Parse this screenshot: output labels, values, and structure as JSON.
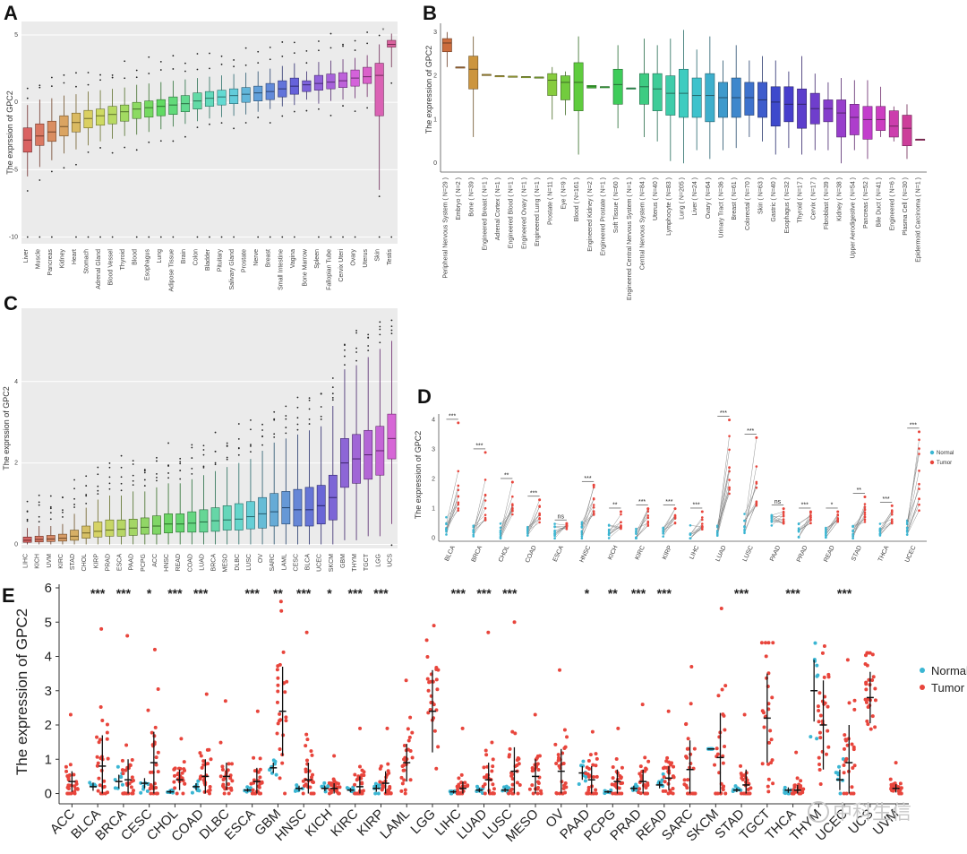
{
  "panels": {
    "A": {
      "label": "A",
      "ylabel": "The exprssion of GPC2"
    },
    "B": {
      "label": "B",
      "ylabel": "The expression of GPC2"
    },
    "C": {
      "label": "C",
      "ylabel": "The exprssion of GPC2"
    },
    "D": {
      "label": "D",
      "ylabel": "The expression of GPC2"
    },
    "E": {
      "label": "E",
      "ylabel": "The expression of GPC2"
    }
  },
  "watermark": "中科生信",
  "colors": {
    "normal": "#3bb6d3",
    "tumor": "#e8453c",
    "panel_bg": "#ebebeb",
    "grid": "#ffffff"
  },
  "chart_data": [
    {
      "panel": "A",
      "type": "box",
      "ylabel": "The exprssion of GPC2",
      "ylim": [
        -10.5,
        6
      ],
      "yticks": [
        5,
        0,
        -5,
        -10
      ],
      "grid": true,
      "categories": [
        "Liver",
        "Muscle",
        "Pancreas",
        "Kidney",
        "Heart",
        "Stomach",
        "Adrenal Gland",
        "Blood Vessel",
        "Thyroid",
        "Blood",
        "Esophagus",
        "Lung",
        "Adipose Tissue",
        "Brain",
        "Colon",
        "Bladder",
        "Pituitary",
        "Salivary Gland",
        "Prostate",
        "Nerve",
        "Breast",
        "Small Intestine",
        "Vagina",
        "Bone Marrow",
        "Spleen",
        "Fallopian Tube",
        "Cervix Uteri",
        "Ovary",
        "Uterus",
        "Skin",
        "Testis"
      ],
      "boxes": [
        [
          -5.5,
          -3.7,
          -2.8,
          -1.9,
          -0.2
        ],
        [
          -4.8,
          -3.2,
          -2.5,
          -1.6,
          0.2
        ],
        [
          -4.3,
          -2.9,
          -2.2,
          -1.4,
          0.3
        ],
        [
          -3.8,
          -2.5,
          -1.8,
          -1.0,
          0.5
        ],
        [
          -3.5,
          -2.2,
          -1.5,
          -0.8,
          0.6
        ],
        [
          -3.2,
          -1.9,
          -1.2,
          -0.6,
          0.8
        ],
        [
          -2.9,
          -1.7,
          -1.0,
          -0.5,
          0.9
        ],
        [
          -2.7,
          -1.6,
          -0.9,
          -0.3,
          1.0
        ],
        [
          -2.5,
          -1.4,
          -0.7,
          -0.2,
          1.1
        ],
        [
          -2.4,
          -1.2,
          -0.5,
          0.0,
          1.3
        ],
        [
          -2.2,
          -1.1,
          -0.4,
          0.1,
          1.4
        ],
        [
          -2.0,
          -1.0,
          -0.3,
          0.2,
          1.5
        ],
        [
          -1.8,
          -0.9,
          -0.2,
          0.4,
          1.6
        ],
        [
          -1.6,
          -0.7,
          -0.1,
          0.5,
          1.7
        ],
        [
          -1.4,
          -0.5,
          0.1,
          0.7,
          1.8
        ],
        [
          -1.2,
          -0.3,
          0.3,
          0.8,
          1.9
        ],
        [
          -1.1,
          -0.2,
          0.4,
          0.9,
          2.0
        ],
        [
          -1.0,
          -0.1,
          0.5,
          1.0,
          2.1
        ],
        [
          -0.9,
          0.0,
          0.6,
          1.1,
          2.2
        ],
        [
          -0.7,
          0.1,
          0.7,
          1.2,
          2.3
        ],
        [
          -0.5,
          0.2,
          0.8,
          1.4,
          2.5
        ],
        [
          -0.3,
          0.4,
          1.0,
          1.6,
          2.7
        ],
        [
          -0.2,
          0.6,
          1.2,
          1.8,
          2.9
        ],
        [
          0.2,
          0.8,
          1.3,
          1.6,
          2.3
        ],
        [
          -0.1,
          0.9,
          1.4,
          2.0,
          3.0
        ],
        [
          0.1,
          1.0,
          1.5,
          2.1,
          3.1
        ],
        [
          0.2,
          1.1,
          1.6,
          2.2,
          3.2
        ],
        [
          0.3,
          1.2,
          1.8,
          2.4,
          3.3
        ],
        [
          0.4,
          1.4,
          1.9,
          2.6,
          3.5
        ],
        [
          -6.5,
          -1.0,
          2.0,
          2.9,
          4.3
        ],
        [
          2.6,
          4.1,
          4.3,
          4.6,
          5.1
        ]
      ],
      "outlier_bottom": -10,
      "annotations": [
        "*"
      ]
    },
    {
      "panel": "B",
      "type": "box",
      "ylabel": "The expression of GPC2",
      "ylim": [
        -0.2,
        3.2
      ],
      "yticks": [
        0,
        1,
        2,
        3
      ],
      "grid": false,
      "categories": [
        "Peripheral Nervous System ( N=29 )",
        "Embryo ( N=2 )",
        "Bone ( N=39 )",
        "Engineered Breast ( N=1 )",
        "Adrenal Cortex ( N=1 )",
        "Engineered Blood ( N=1 )",
        "Engineered Ovary ( N=1 )",
        "Engineered Lung ( N=1 )",
        "Prostate ( N=11 )",
        "Eye ( N=9 )",
        "Blood ( N=161 )",
        "Engineered Kidney ( N=2 )",
        "Engineered Prostate ( N=1 )",
        "Soft Tissue ( N=60 )",
        "Engineered Central Nervous System ( N=1 )",
        "Central Nervous System ( N=84 )",
        "Uterus ( N=40 )",
        "Lymphocyte ( N=83 )",
        "Lung ( N=205 )",
        "Liver ( N=24 )",
        "Ovary ( N=64 )",
        "Urinary Tract ( N=36 )",
        "Breast ( N=61 )",
        "Colorectal ( N=70 )",
        "Skin ( N=63 )",
        "Gastric ( N=40 )",
        "Esophagus ( N=32 )",
        "Thyroid ( N=17 )",
        "Cervix ( N=17 )",
        "Fibroblast ( N=39 )",
        "Kidney ( N=38 )",
        "Upper Aerodigestive ( N=54 )",
        "Pancreas ( N=52 )",
        "Bile Duct ( N=41 )",
        "Engineered ( N=6 )",
        "Plasma Cell ( N=30 )",
        "Epidermoid Carcinoma ( N=1 )"
      ],
      "boxes": [
        [
          2.2,
          2.55,
          2.75,
          2.85,
          3.0
        ],
        [
          2.2,
          2.2,
          2.2,
          2.2,
          2.2
        ],
        [
          0.6,
          1.7,
          2.15,
          2.45,
          2.9
        ],
        [
          2.03,
          2.03,
          2.03,
          2.03,
          2.03
        ],
        [
          2.0,
          2.0,
          2.0,
          2.0,
          2.0
        ],
        [
          1.99,
          1.99,
          1.99,
          1.99,
          1.99
        ],
        [
          1.98,
          1.98,
          1.98,
          1.98,
          1.98
        ],
        [
          1.97,
          1.97,
          1.97,
          1.97,
          1.97
        ],
        [
          1.0,
          1.55,
          1.9,
          2.05,
          2.2
        ],
        [
          1.1,
          1.45,
          1.85,
          2.0,
          2.1
        ],
        [
          0.2,
          1.2,
          1.85,
          2.3,
          2.9
        ],
        [
          1.72,
          1.72,
          1.75,
          1.78,
          1.78
        ],
        [
          1.75,
          1.75,
          1.75,
          1.75,
          1.75
        ],
        [
          0.8,
          1.35,
          1.8,
          2.15,
          2.7
        ],
        [
          1.72,
          1.72,
          1.72,
          1.72,
          1.72
        ],
        [
          0.6,
          1.35,
          1.75,
          2.05,
          2.85
        ],
        [
          0.5,
          1.2,
          1.7,
          2.05,
          2.7
        ],
        [
          0.05,
          1.1,
          1.6,
          2.0,
          2.85
        ],
        [
          0.0,
          1.05,
          1.6,
          2.15,
          3.05
        ],
        [
          0.3,
          1.05,
          1.55,
          1.95,
          2.6
        ],
        [
          0.1,
          0.95,
          1.55,
          2.05,
          2.9
        ],
        [
          0.3,
          1.05,
          1.5,
          1.85,
          2.35
        ],
        [
          0.35,
          1.05,
          1.5,
          1.95,
          2.7
        ],
        [
          0.6,
          1.1,
          1.5,
          1.85,
          2.35
        ],
        [
          0.5,
          1.05,
          1.45,
          1.85,
          2.45
        ],
        [
          0.2,
          0.85,
          1.4,
          1.75,
          2.35
        ],
        [
          0.35,
          0.95,
          1.35,
          1.75,
          2.1
        ],
        [
          0.2,
          0.8,
          1.35,
          1.7,
          2.45
        ],
        [
          0.3,
          0.9,
          1.25,
          1.6,
          2.05
        ],
        [
          0.3,
          0.95,
          1.25,
          1.45,
          1.85
        ],
        [
          0.0,
          0.6,
          1.15,
          1.45,
          1.95
        ],
        [
          0.3,
          0.65,
          1.05,
          1.35,
          1.9
        ],
        [
          0.1,
          0.55,
          1.0,
          1.3,
          1.9
        ],
        [
          0.6,
          0.75,
          1.0,
          1.3,
          1.75
        ],
        [
          0.5,
          0.6,
          0.85,
          1.2,
          1.3
        ],
        [
          0.1,
          0.4,
          0.8,
          1.1,
          1.35
        ],
        [
          0.55,
          0.55,
          0.55,
          0.55,
          0.55
        ]
      ]
    },
    {
      "panel": "C",
      "type": "box",
      "ylabel": "The exprssion of GPC2",
      "ylim": [
        -0.1,
        5.8
      ],
      "yticks": [
        0,
        2,
        4
      ],
      "grid": true,
      "categories": [
        "LIHC",
        "KICH",
        "UVM",
        "KIRC",
        "STAD",
        "CHOL",
        "KIRP",
        "PRAD",
        "ESCA",
        "PAAD",
        "PCPG",
        "ACC",
        "HNSC",
        "READ",
        "COAD",
        "LUAD",
        "BRCA",
        "MESO",
        "DLBC",
        "LUSC",
        "OV",
        "SARC",
        "LAML",
        "CESC",
        "BLCA",
        "UCEC",
        "SKCM",
        "GBM",
        "THYM",
        "TGCT",
        "LGG",
        "UCS"
      ],
      "boxes": [
        [
          0.0,
          0.05,
          0.1,
          0.18,
          0.4
        ],
        [
          0.0,
          0.06,
          0.12,
          0.2,
          0.45
        ],
        [
          0.0,
          0.07,
          0.13,
          0.22,
          0.45
        ],
        [
          0.0,
          0.08,
          0.15,
          0.25,
          0.5
        ],
        [
          0.0,
          0.1,
          0.2,
          0.35,
          0.75
        ],
        [
          0.0,
          0.15,
          0.28,
          0.45,
          0.9
        ],
        [
          0.0,
          0.18,
          0.32,
          0.55,
          1.1
        ],
        [
          0.0,
          0.2,
          0.35,
          0.6,
          1.2
        ],
        [
          0.0,
          0.2,
          0.37,
          0.6,
          1.2
        ],
        [
          0.0,
          0.22,
          0.4,
          0.62,
          1.3
        ],
        [
          0.0,
          0.25,
          0.42,
          0.65,
          1.3
        ],
        [
          0.0,
          0.25,
          0.45,
          0.7,
          1.4
        ],
        [
          0.0,
          0.28,
          0.5,
          0.75,
          1.5
        ],
        [
          0.0,
          0.3,
          0.5,
          0.75,
          1.5
        ],
        [
          0.0,
          0.3,
          0.52,
          0.8,
          1.6
        ],
        [
          0.0,
          0.3,
          0.55,
          0.85,
          1.7
        ],
        [
          0.0,
          0.32,
          0.58,
          0.9,
          1.8
        ],
        [
          0.0,
          0.35,
          0.6,
          0.95,
          1.9
        ],
        [
          0.0,
          0.35,
          0.62,
          1.0,
          2.0
        ],
        [
          0.0,
          0.38,
          0.68,
          1.05,
          2.1
        ],
        [
          0.0,
          0.4,
          0.75,
          1.15,
          2.3
        ],
        [
          0.0,
          0.45,
          0.8,
          1.25,
          2.5
        ],
        [
          0.0,
          0.5,
          0.9,
          1.3,
          2.6
        ],
        [
          0.0,
          0.45,
          0.85,
          1.35,
          2.7
        ],
        [
          0.0,
          0.45,
          0.85,
          1.4,
          2.8
        ],
        [
          0.0,
          0.5,
          0.95,
          1.45,
          2.9
        ],
        [
          0.0,
          0.6,
          1.15,
          1.7,
          3.4
        ],
        [
          0.1,
          1.4,
          2.0,
          2.6,
          4.3
        ],
        [
          0.1,
          1.5,
          2.1,
          2.7,
          4.4
        ],
        [
          0.2,
          1.6,
          2.2,
          2.8,
          4.6
        ],
        [
          0.2,
          1.7,
          2.3,
          2.9,
          4.8
        ],
        [
          0.5,
          2.1,
          2.6,
          3.2,
          5.0
        ]
      ]
    },
    {
      "panel": "D",
      "type": "paired-scatter",
      "ylabel": "The expression of GPC2",
      "ylim": [
        -0.1,
        4.2
      ],
      "yticks": [
        0,
        1,
        2,
        3,
        4
      ],
      "legend": [
        "Normal",
        "Tumor"
      ],
      "legend_position": "right",
      "categories": [
        "BLCA",
        "BRCA",
        "CHOL",
        "COAD",
        "ESCA",
        "HNSC",
        "KICH",
        "KIRC",
        "KIRP",
        "LIHC",
        "LUAD",
        "LUSC",
        "PAAD",
        "PRAD",
        "READ",
        "STAD",
        "THCA",
        "UCEC"
      ],
      "significance": [
        "***",
        "***",
        "**",
        "***",
        "ns",
        "***",
        "**",
        "***",
        "***",
        "***",
        "***",
        "***",
        "ns",
        "***",
        "*",
        "**",
        "***",
        "***"
      ],
      "normal_median": [
        0.3,
        0.25,
        0.2,
        0.25,
        0.25,
        0.3,
        0.15,
        0.12,
        0.2,
        0.1,
        0.3,
        0.3,
        0.6,
        0.25,
        0.25,
        0.2,
        0.2,
        0.35
      ],
      "tumor_median": [
        0.8,
        0.6,
        0.7,
        0.5,
        0.3,
        0.7,
        0.3,
        0.4,
        0.5,
        0.3,
        0.8,
        0.9,
        0.5,
        0.5,
        0.5,
        0.5,
        0.5,
        0.9
      ],
      "tumor_max": [
        3.9,
        2.9,
        1.9,
        1.3,
        0.5,
        1.8,
        0.9,
        1.0,
        1.0,
        0.9,
        4.0,
        3.4,
        1.0,
        0.9,
        0.9,
        1.4,
        1.1,
        3.6
      ]
    },
    {
      "panel": "E",
      "type": "scatter-strip",
      "ylabel": "The expression of GPC2",
      "ylim": [
        -0.3,
        6
      ],
      "yticks": [
        0,
        1,
        2,
        3,
        4,
        5,
        6
      ],
      "legend": [
        "Normal",
        "Tumor"
      ],
      "legend_position": "right",
      "categories": [
        "ACC",
        "BLCA",
        "BRCA",
        "CESC",
        "CHOL",
        "COAD",
        "DLBC",
        "ESCA",
        "GBM",
        "HNSC",
        "KICH",
        "KIRC",
        "KIRP",
        "LAML",
        "LGG",
        "LIHC",
        "LUAD",
        "LUSC",
        "MESO",
        "OV",
        "PAAD",
        "PCPG",
        "PRAD",
        "READ",
        "SARC",
        "SKCM",
        "STAD",
        "TGCT",
        "THCA",
        "THYM",
        "UCEC",
        "UCS",
        "UVM"
      ],
      "significance": [
        "",
        "***",
        "***",
        "*",
        "***",
        "***",
        "",
        "***",
        "**",
        "***",
        "*",
        "***",
        "***",
        "",
        "",
        "***",
        "***",
        "***",
        "",
        "",
        "*",
        "**",
        "***",
        "***",
        "",
        "",
        "***",
        "",
        "***",
        "",
        "***",
        "",
        ""
      ],
      "normal_mean": [
        null,
        0.2,
        0.35,
        0.3,
        0.05,
        0.2,
        null,
        0.1,
        0.75,
        0.15,
        0.15,
        0.1,
        0.15,
        null,
        null,
        0.05,
        0.1,
        0.1,
        null,
        null,
        0.6,
        0.05,
        0.15,
        0.25,
        null,
        1.3,
        0.1,
        null,
        0.1,
        3.0,
        0.4,
        null,
        null
      ],
      "normal_sd": [
        null,
        0.12,
        0.2,
        0.15,
        0.05,
        0.1,
        null,
        0.05,
        0.15,
        0.08,
        0.08,
        0.06,
        0.1,
        null,
        null,
        0.05,
        0.06,
        0.06,
        null,
        null,
        0.2,
        0.04,
        0.08,
        0.1,
        null,
        0.0,
        0.06,
        null,
        0.08,
        0.9,
        0.3,
        null,
        null
      ],
      "tumor_mean": [
        0.35,
        0.8,
        0.4,
        0.9,
        0.4,
        0.5,
        0.5,
        0.35,
        2.4,
        0.4,
        0.15,
        0.2,
        0.3,
        0.9,
        2.4,
        0.15,
        0.4,
        0.65,
        0.5,
        0.65,
        0.4,
        0.35,
        0.35,
        0.45,
        0.7,
        1.05,
        0.25,
        2.2,
        0.1,
        2.0,
        0.9,
        2.8,
        0.15
      ],
      "tumor_sd": [
        0.3,
        0.9,
        0.6,
        0.9,
        0.3,
        0.5,
        0.4,
        0.4,
        1.3,
        0.5,
        0.15,
        0.3,
        0.35,
        0.55,
        1.2,
        0.2,
        0.5,
        0.7,
        0.5,
        0.65,
        0.4,
        0.35,
        0.35,
        0.35,
        0.85,
        1.3,
        0.45,
        1.3,
        0.15,
        1.3,
        1.1,
        0.75,
        0.12
      ],
      "tumor_max": [
        2.3,
        4.8,
        4.6,
        4.2,
        1.6,
        2.9,
        2.7,
        2.4,
        5.6,
        4.7,
        1.1,
        1.9,
        1.9,
        3.3,
        4.9,
        1.9,
        4.7,
        5.0,
        2.3,
        3.6,
        1.8,
        1.9,
        2.6,
        2.4,
        3.7,
        5.4,
        2.3,
        4.4,
        1.2,
        4.3,
        3.9,
        4.1,
        0.9
      ]
    }
  ]
}
